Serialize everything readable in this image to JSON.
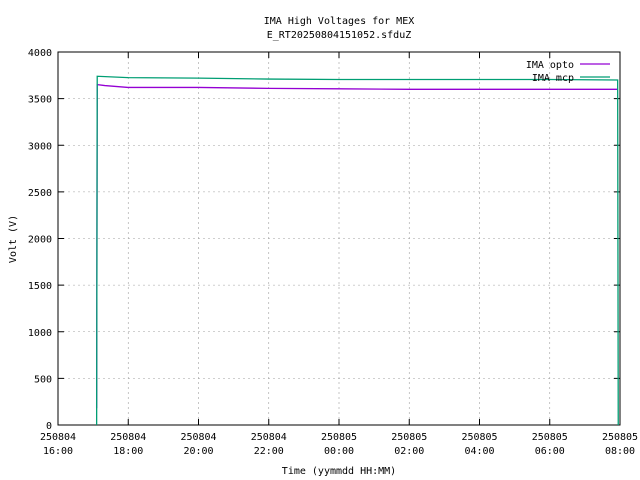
{
  "chart_data": {
    "type": "line",
    "title": "IMA High Voltages for MEX",
    "subtitle": "E_RT20250804151052.sfduZ",
    "x_label": "Time (yymmdd HH:MM)",
    "y_label": "Volt (V)",
    "xlim": [
      "250804 16:00",
      "250805 08:00"
    ],
    "xticks": [
      "250804 16:00",
      "250804 18:00",
      "250804 20:00",
      "250804 22:00",
      "250805 00:00",
      "250805 02:00",
      "250805 04:00",
      "250805 06:00",
      "250805 08:00"
    ],
    "ylim": [
      0,
      4000
    ],
    "yticks": [
      0,
      500,
      1000,
      1500,
      2000,
      2500,
      3000,
      3500,
      4000
    ],
    "grid": true,
    "legend": "top-right",
    "series": [
      {
        "name": "IMA opto",
        "color": "#9400d3",
        "x": [
          "250804 17:06",
          "250804 17:07",
          "250804 17:20",
          "250804 18:00",
          "250804 20:00",
          "250804 22:00",
          "250805 00:00",
          "250805 02:00",
          "250805 04:00",
          "250805 06:00",
          "250805 07:56"
        ],
        "values": [
          180,
          3650,
          3640,
          3620,
          3620,
          3610,
          3605,
          3600,
          3600,
          3600,
          3600
        ]
      },
      {
        "name": "IMA mcp",
        "color": "#009e73",
        "x": [
          "250804 17:06",
          "250804 17:07",
          "250804 18:00",
          "250804 20:00",
          "250804 22:00",
          "250805 00:00",
          "250805 02:00",
          "250805 04:00",
          "250805 06:00",
          "250805 07:56",
          "250805 07:57"
        ],
        "values": [
          0,
          3740,
          3725,
          3720,
          3710,
          3705,
          3705,
          3705,
          3705,
          3700,
          0
        ]
      }
    ]
  }
}
